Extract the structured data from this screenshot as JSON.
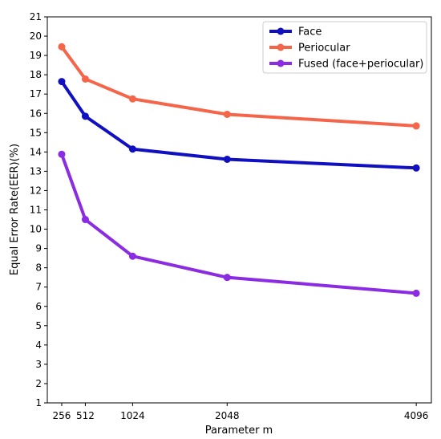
{
  "chart_data": {
    "type": "line",
    "title": "",
    "xlabel": "Parameter m",
    "ylabel": "Equal Error Rate(EER)(%)",
    "x": [
      256,
      512,
      1024,
      2048,
      4096
    ],
    "x_tick_labels": [
      "256",
      "512",
      "1024",
      "2048",
      "4096"
    ],
    "xlim": [
      100,
      4260
    ],
    "ylim": [
      1,
      21
    ],
    "y_ticks": [
      1,
      2,
      3,
      4,
      5,
      6,
      7,
      8,
      9,
      10,
      11,
      12,
      13,
      14,
      15,
      16,
      17,
      18,
      19,
      20,
      21
    ],
    "grid": false,
    "legend_position": "top-right",
    "series": [
      {
        "name": "Face",
        "color": "#1010c0",
        "values": [
          17.65,
          15.85,
          14.15,
          13.62,
          13.17
        ]
      },
      {
        "name": "Periocular",
        "color": "#f4654a",
        "values": [
          19.45,
          17.78,
          16.75,
          15.95,
          15.35
        ]
      },
      {
        "name": "Fused (face+periocular)",
        "color": "#8b2be2",
        "values": [
          13.88,
          10.5,
          8.6,
          7.5,
          6.68
        ]
      }
    ]
  }
}
